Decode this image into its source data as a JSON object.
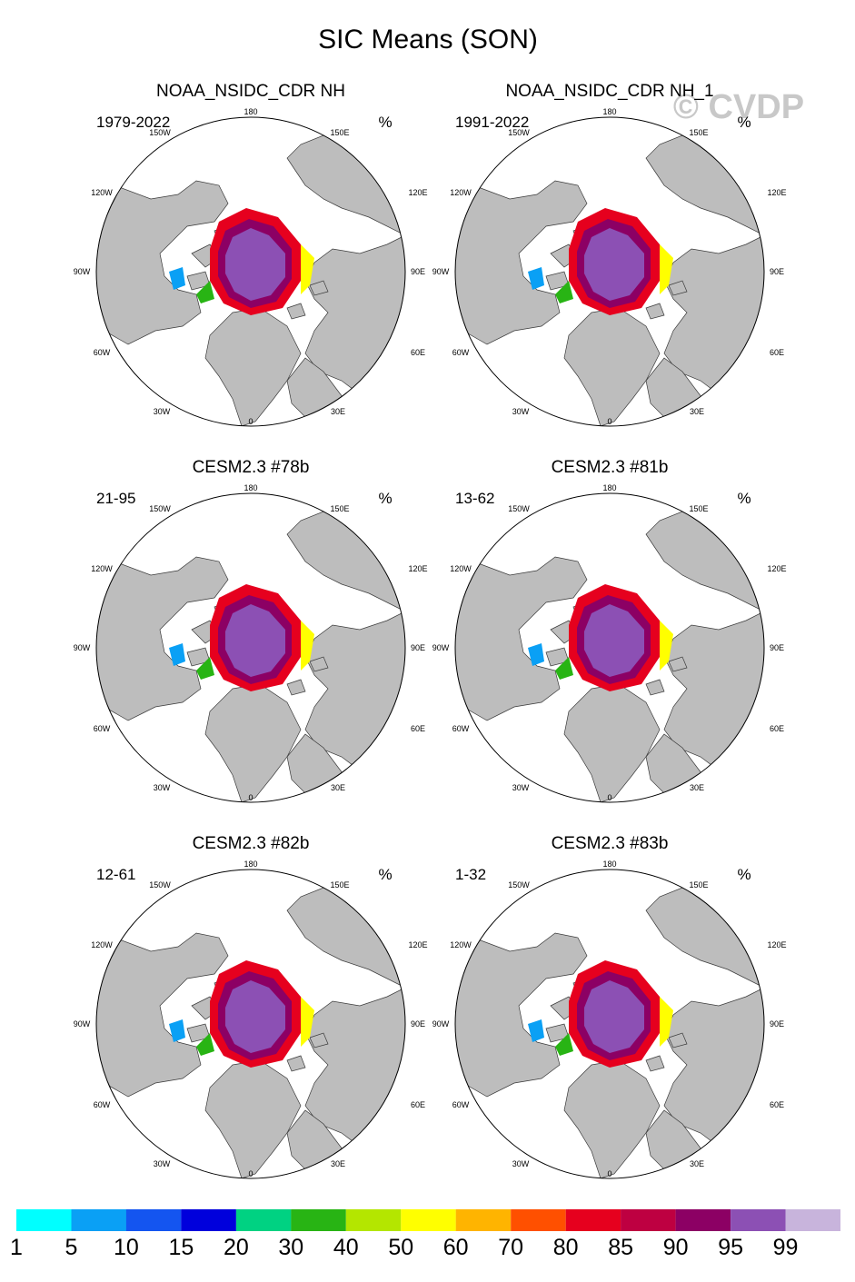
{
  "figure": {
    "title": "SIC Means (SON)",
    "watermark": "© CVDP"
  },
  "colors": {
    "land": "#bdbdbd",
    "ocean": "#ffffff",
    "coast": "#3a3a3a"
  },
  "panels": [
    {
      "title": "NOAA_NSIDC_CDR NH",
      "years": "1979-2022",
      "units": "%"
    },
    {
      "title": "NOAA_NSIDC_CDR NH_1",
      "years": "1991-2022",
      "units": "%"
    },
    {
      "title": "CESM2.3 #78b",
      "years": "21-95",
      "units": "%"
    },
    {
      "title": "CESM2.3 #81b",
      "years": "13-62",
      "units": "%"
    },
    {
      "title": "CESM2.3 #82b",
      "years": "12-61",
      "units": "%"
    },
    {
      "title": "CESM2.3 #83b",
      "years": "1-32",
      "units": "%"
    }
  ],
  "lon_labels": [
    "180",
    "150E",
    "120E",
    "90E",
    "60E",
    "30E",
    "0",
    "30W",
    "60W",
    "90W",
    "120W",
    "150W"
  ],
  "colorbar": {
    "labels": [
      "1",
      "5",
      "10",
      "15",
      "20",
      "30",
      "40",
      "50",
      "60",
      "70",
      "80",
      "85",
      "90",
      "95",
      "99"
    ],
    "colors": [
      "#00ffff",
      "#0aa0f5",
      "#1455f0",
      "#0000dc",
      "#00d282",
      "#28b414",
      "#b4e600",
      "#ffff00",
      "#ffb400",
      "#ff5000",
      "#e6001e",
      "#be0041",
      "#8c0064",
      "#8c50b4",
      "#c8b4dc"
    ]
  },
  "chart_data": {
    "type": "heatmap",
    "variable": "SIC",
    "season": "SON",
    "units": "%",
    "levels": [
      1,
      5,
      10,
      15,
      20,
      30,
      40,
      50,
      60,
      70,
      80,
      85,
      90,
      95,
      99
    ],
    "panels": [
      {
        "name": "NOAA_NSIDC_CDR NH",
        "years": "1979-2022"
      },
      {
        "name": "NOAA_NSIDC_CDR NH_1",
        "years": "1991-2022"
      },
      {
        "name": "CESM2.3 #78b",
        "years": "21-95"
      },
      {
        "name": "CESM2.3 #81b",
        "years": "13-62"
      },
      {
        "name": "CESM2.3 #82b",
        "years": "12-61"
      },
      {
        "name": "CESM2.3 #83b",
        "years": "1-32"
      }
    ]
  }
}
